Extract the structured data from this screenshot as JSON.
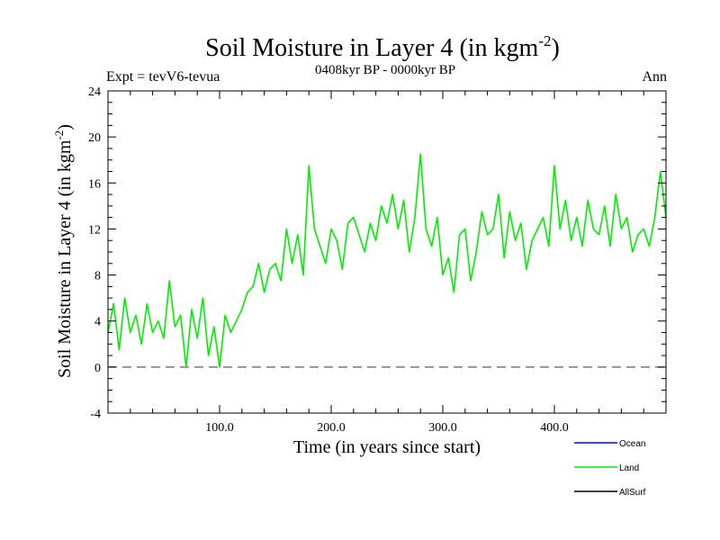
{
  "chart_data": {
    "type": "line",
    "title": "Soil Moisture in Layer 4 (in kgm",
    "title_sup": "-2",
    "title_close": ")",
    "subtitle": "0408kyr BP - 0000kyr BP",
    "expt_label": "Expt = tevV6-tevua",
    "season_label": "Ann",
    "xlabel": "Time (in years since start)",
    "ylabel": "Soil Moisture in Layer 4 (in kgm",
    "ylabel_sup": "-2",
    "ylabel_close": ")",
    "xlim": [
      0,
      500
    ],
    "ylim": [
      -4,
      24
    ],
    "x_ticks": [
      100,
      200,
      300,
      400
    ],
    "x_tick_labels": [
      "100.0",
      "200.0",
      "300.0",
      "400.0"
    ],
    "y_ticks": [
      -4,
      0,
      4,
      8,
      12,
      16,
      20,
      24
    ],
    "y_tick_labels": [
      "-4",
      "0",
      "4",
      "8",
      "12",
      "16",
      "20",
      "24"
    ],
    "reference_line_y": 0,
    "grid": false,
    "legend_position": "bottom-right",
    "legend": [
      {
        "name": "Ocean",
        "color": "#0000ff"
      },
      {
        "name": "Land",
        "color": "#00ee00"
      },
      {
        "name": "AllSurf",
        "color": "#000000"
      }
    ],
    "series": [
      {
        "name": "Land",
        "color": "#00ee00",
        "x": [
          0,
          5,
          10,
          15,
          20,
          25,
          30,
          35,
          40,
          45,
          50,
          55,
          60,
          65,
          70,
          75,
          80,
          85,
          90,
          95,
          100,
          105,
          110,
          115,
          120,
          125,
          130,
          135,
          140,
          145,
          150,
          155,
          160,
          165,
          170,
          175,
          180,
          185,
          190,
          195,
          200,
          205,
          210,
          215,
          220,
          225,
          230,
          235,
          240,
          245,
          250,
          255,
          260,
          265,
          270,
          275,
          280,
          285,
          290,
          295,
          300,
          305,
          310,
          315,
          320,
          325,
          330,
          335,
          340,
          345,
          350,
          355,
          360,
          365,
          370,
          375,
          380,
          385,
          390,
          395,
          400,
          405,
          410,
          415,
          420,
          425,
          430,
          435,
          440,
          445,
          450,
          455,
          460,
          465,
          470,
          475,
          480,
          485,
          490,
          495,
          500
        ],
        "y": [
          3.0,
          5.5,
          1.5,
          6.0,
          3.0,
          4.5,
          2.0,
          5.5,
          3.0,
          4.0,
          2.5,
          7.5,
          3.5,
          4.5,
          0.0,
          5.0,
          2.5,
          6.0,
          1.0,
          3.5,
          0.0,
          4.5,
          3.0,
          4.0,
          5.0,
          6.5,
          7.0,
          9.0,
          6.5,
          8.5,
          9.0,
          7.5,
          12.0,
          9.0,
          11.5,
          8.0,
          17.5,
          12.0,
          10.5,
          9.0,
          12.0,
          11.0,
          8.5,
          12.5,
          13.0,
          11.5,
          10.0,
          12.5,
          11.0,
          14.0,
          12.5,
          15.0,
          12.0,
          14.5,
          10.0,
          13.0,
          18.5,
          12.0,
          10.5,
          13.0,
          8.0,
          9.5,
          6.5,
          11.5,
          12.0,
          7.5,
          10.0,
          13.5,
          11.5,
          12.0,
          15.0,
          9.5,
          13.5,
          11.0,
          12.5,
          8.5,
          11.0,
          12.0,
          13.0,
          10.5,
          17.5,
          12.0,
          14.5,
          11.0,
          13.0,
          10.5,
          14.5,
          12.0,
          11.5,
          14.0,
          10.5,
          15.0,
          12.0,
          13.0,
          10.0,
          11.5,
          12.0,
          10.5,
          13.0,
          17.0,
          13.0
        ]
      }
    ]
  }
}
